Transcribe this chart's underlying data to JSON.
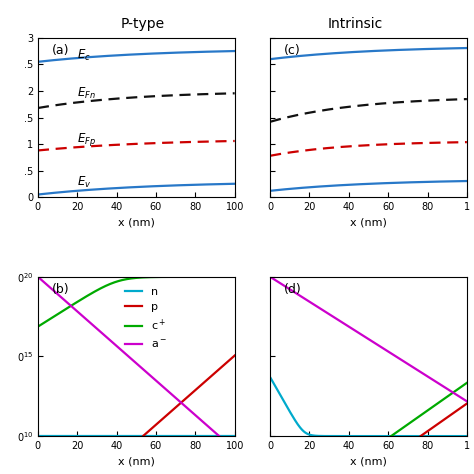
{
  "title_left": "P-type",
  "title_right": "Intrinsic",
  "panel_labels": [
    "(a)",
    "(b)",
    "(c)",
    "(d)"
  ],
  "xlabel": "x (nm)",
  "blue_color": "#2878c8",
  "black_color": "#111111",
  "red_color": "#cc0000",
  "cyan_color": "#00aacc",
  "green_color": "#00aa00",
  "magenta_color": "#cc00cc",
  "energy_ytick_labels": [
    "0",
    ".5",
    "1",
    ".5",
    "2",
    ".5",
    "3"
  ],
  "carrier_ytick_labels_left": [
    "0¹⁰",
    "0¹⁵",
    "0²⁰"
  ],
  "legend_labels": [
    "n",
    "p",
    "c⁺",
    "a⁻"
  ]
}
